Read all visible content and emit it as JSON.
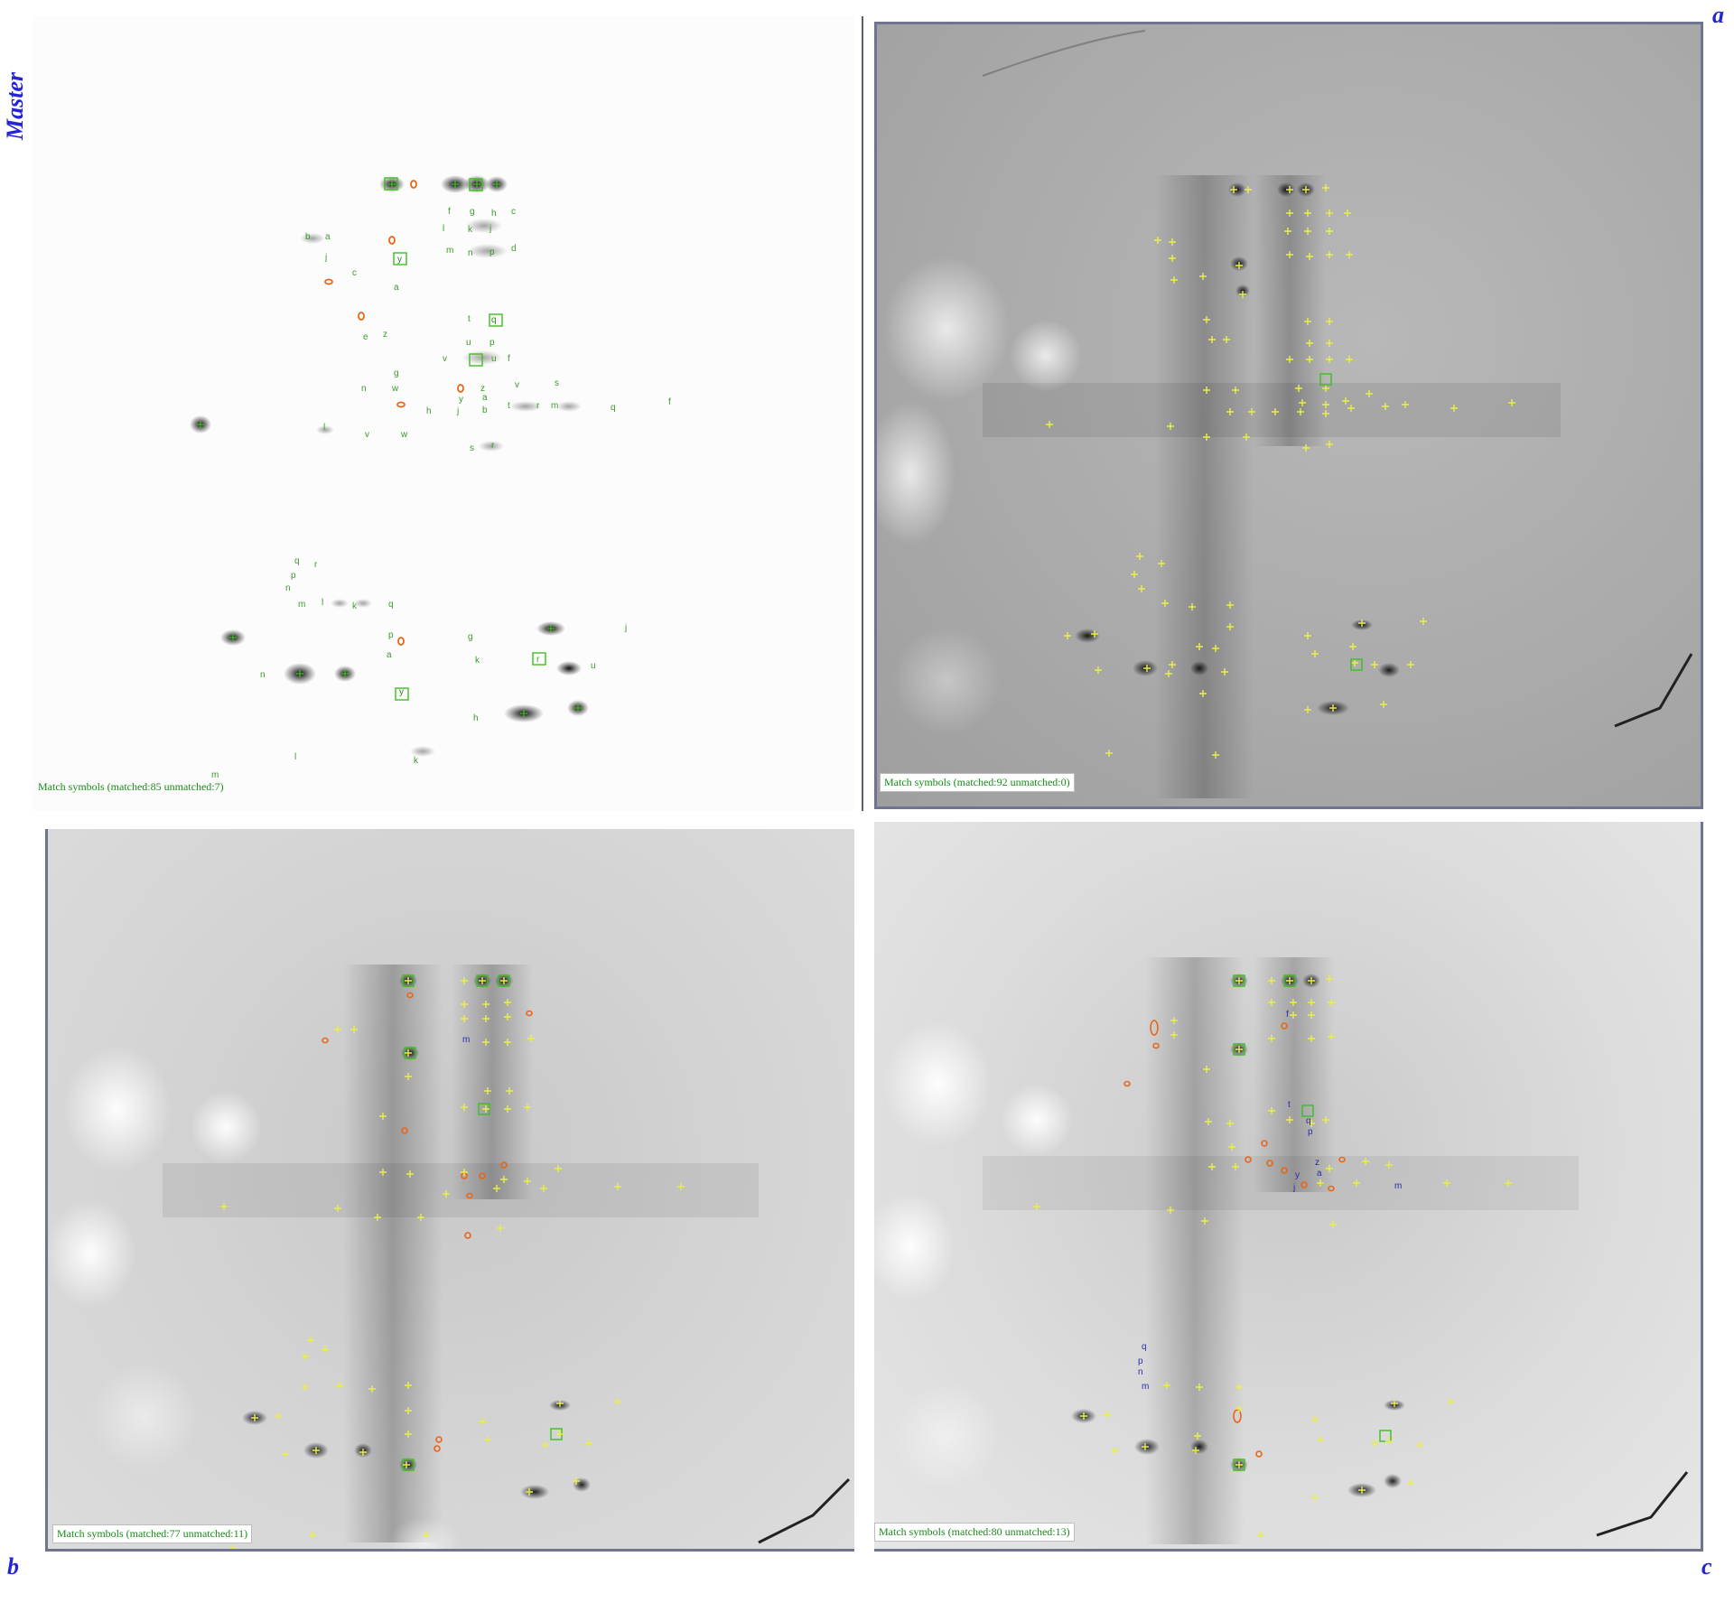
{
  "labels": {
    "master": "Master",
    "a": "a",
    "b": "b",
    "c": "c"
  },
  "captions": {
    "master": "Match symbols (matched:85 unmatched:7)",
    "a": "Match symbols (matched:92 unmatched:0)",
    "b": "Match symbols (matched:77 unmatched:11)",
    "c": "Match symbols (matched:80 unmatched:13)"
  },
  "colors": {
    "label_blue": "#2323d8",
    "matched_green": "#3cbf1e",
    "cross_yellow": "#e8f04a",
    "unmatched_orange": "#e8651a",
    "frame": "#6f7590"
  },
  "spot_letters": {
    "master": [
      "f",
      "g",
      "h",
      "c",
      "l",
      "k",
      "j",
      "b",
      "a",
      "m",
      "n",
      "p",
      "d",
      "y",
      "c",
      "a",
      "t",
      "q",
      "e",
      "z",
      "u",
      "p",
      "v",
      "u",
      "t",
      "g",
      "n",
      "w",
      "o",
      "z",
      "v",
      "s",
      "h",
      "y",
      "a",
      "b",
      "r",
      "m",
      "q",
      "f",
      "l",
      "v",
      "w",
      "s",
      "r",
      "q",
      "r",
      "p",
      "n",
      "m",
      "l",
      "k",
      "q",
      "r",
      "p",
      "a",
      "g",
      "k",
      "n",
      "y",
      "h",
      "j",
      "u",
      "l",
      "k",
      "m"
    ],
    "b": [
      "m"
    ],
    "c": [
      "f",
      "t",
      "m",
      "q",
      "p",
      "y",
      "a",
      "z",
      "j",
      "m",
      "q",
      "p",
      "n",
      "m"
    ]
  }
}
